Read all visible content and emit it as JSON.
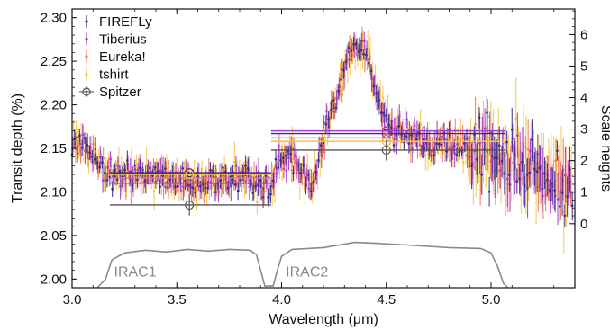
{
  "chart_data": {
    "type": "scatter",
    "xlabel": "Wavelength (μm)",
    "ylabel": "Transit depth (%)",
    "ylabel_right": "Scale heights",
    "xlim": [
      3.0,
      5.4
    ],
    "ylim": [
      1.99,
      2.31
    ],
    "x_ticks": [
      "3.0",
      "3.5",
      "4.0",
      "4.5",
      "5.0"
    ],
    "y_ticks": [
      "2.00",
      "2.05",
      "2.10",
      "2.15",
      "2.20",
      "2.25",
      "2.30"
    ],
    "right_ticks": [
      "0",
      "1",
      "2",
      "3",
      "4",
      "5",
      "6"
    ],
    "right_axis": {
      "zero_depth": 2.0635,
      "depth_per_scale_height": 0.0362
    },
    "grid": false,
    "legend_position": "top-left",
    "series": [
      {
        "name": "FIREFLy",
        "color": "#3a2a8c",
        "marker": "errorbar"
      },
      {
        "name": "Tiberius",
        "color": "#a23cc9",
        "marker": "errorbar"
      },
      {
        "name": "Eureka!",
        "color": "#f07868",
        "marker": "errorbar"
      },
      {
        "name": "tshirt",
        "color": "#f5c242",
        "marker": "errorbar"
      },
      {
        "name": "Spitzer",
        "color": "#555555",
        "marker": "open-circle"
      }
    ],
    "spectrum_outline": [
      [
        3.0,
        2.155
      ],
      [
        3.05,
        2.155
      ],
      [
        3.1,
        2.138
      ],
      [
        3.15,
        2.128
      ],
      [
        3.2,
        2.12
      ],
      [
        3.3,
        2.118
      ],
      [
        3.4,
        2.122
      ],
      [
        3.5,
        2.112
      ],
      [
        3.6,
        2.108
      ],
      [
        3.7,
        2.11
      ],
      [
        3.8,
        2.118
      ],
      [
        3.9,
        2.105
      ],
      [
        3.95,
        2.11
      ],
      [
        4.0,
        2.138
      ],
      [
        4.05,
        2.142
      ],
      [
        4.1,
        2.118
      ],
      [
        4.15,
        2.108
      ],
      [
        4.2,
        2.162
      ],
      [
        4.25,
        2.198
      ],
      [
        4.3,
        2.242
      ],
      [
        4.35,
        2.262
      ],
      [
        4.4,
        2.265
      ],
      [
        4.45,
        2.218
      ],
      [
        4.5,
        2.182
      ],
      [
        4.55,
        2.168
      ],
      [
        4.6,
        2.165
      ],
      [
        4.7,
        2.155
      ],
      [
        4.8,
        2.16
      ],
      [
        4.9,
        2.148
      ],
      [
        5.0,
        2.145
      ],
      [
        5.1,
        2.132
      ],
      [
        5.2,
        2.128
      ],
      [
        5.3,
        2.118
      ],
      [
        5.38,
        2.1
      ]
    ],
    "spitzer": [
      {
        "band": "IRAC1",
        "x": 3.56,
        "xrange": [
          3.18,
          3.95
        ],
        "values": {
          "FIREFLy": 2.122,
          "Tiberius": 2.11,
          "Eureka!": 2.116,
          "tshirt": 2.12,
          "Spitzer": 2.085
        }
      },
      {
        "band": "IRAC2",
        "x": 4.5,
        "xrange": [
          3.95,
          5.07
        ],
        "values": {
          "FIREFLy": 2.167,
          "Tiberius": 2.17,
          "Eureka!": 2.162,
          "tshirt": 2.158,
          "Spitzer": 2.148
        }
      }
    ],
    "bandpass_labels": [
      "IRAC1",
      "IRAC2"
    ]
  }
}
